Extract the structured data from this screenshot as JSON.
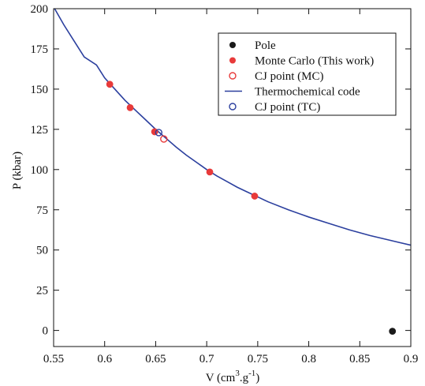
{
  "chart_data": {
    "type": "scatter",
    "xlabel": "V (cm",
    "xlabel_sup": "3",
    "xlabel_mid": ".g",
    "xlabel_sup2": "-1",
    "xlabel_end": ")",
    "ylabel": "P (kbar)",
    "xlim": [
      0.55,
      0.9
    ],
    "ylim": [
      -10,
      200
    ],
    "xticks": [
      0.55,
      0.6,
      0.65,
      0.7,
      0.75,
      0.8,
      0.85,
      0.9
    ],
    "xtick_labels": [
      "0.55",
      "0.6",
      "0.65",
      "0.7",
      "0.75",
      "0.8",
      "0.85",
      "0.9"
    ],
    "yticks": [
      0,
      25,
      50,
      75,
      100,
      125,
      150,
      175,
      200
    ],
    "ytick_labels": [
      "0",
      "25",
      "50",
      "75",
      "100",
      "125",
      "150",
      "175",
      "200"
    ],
    "grid": false,
    "legend_position": "top-right",
    "colors": {
      "pole": "#1a1a1a",
      "mc": "#e83a3a",
      "tc": "#2b3f9e"
    },
    "series": [
      {
        "name": "Pole",
        "kind": "point",
        "marker": "filled",
        "color": "#1a1a1a",
        "points": [
          [
            0.882,
            -0.5
          ]
        ]
      },
      {
        "name": "Monte Carlo (This work)",
        "kind": "point",
        "marker": "filled",
        "color": "#e83a3a",
        "points": [
          [
            0.605,
            153
          ],
          [
            0.625,
            138.5
          ],
          [
            0.649,
            123.5
          ],
          [
            0.703,
            98.5
          ],
          [
            0.747,
            83.5
          ]
        ]
      },
      {
        "name": "CJ point (MC)",
        "kind": "point",
        "marker": "open",
        "color": "#e83a3a",
        "points": [
          [
            0.658,
            119
          ]
        ]
      },
      {
        "name": "Thermochemical code",
        "kind": "line",
        "color": "#2b3f9e",
        "points": [
          [
            0.551,
            200
          ],
          [
            0.56,
            190
          ],
          [
            0.57,
            180
          ],
          [
            0.58,
            170
          ],
          [
            0.592,
            165
          ],
          [
            0.6,
            157
          ],
          [
            0.61,
            150
          ],
          [
            0.62,
            143
          ],
          [
            0.63,
            137
          ],
          [
            0.64,
            131
          ],
          [
            0.65,
            125
          ],
          [
            0.66,
            119.5
          ],
          [
            0.67,
            114
          ],
          [
            0.68,
            109
          ],
          [
            0.69,
            104.5
          ],
          [
            0.7,
            100
          ],
          [
            0.71,
            96
          ],
          [
            0.72,
            92.5
          ],
          [
            0.73,
            89
          ],
          [
            0.74,
            86
          ],
          [
            0.75,
            83
          ],
          [
            0.76,
            80
          ],
          [
            0.78,
            75
          ],
          [
            0.8,
            70.5
          ],
          [
            0.82,
            66.5
          ],
          [
            0.84,
            62.5
          ],
          [
            0.86,
            59
          ],
          [
            0.88,
            56
          ],
          [
            0.9,
            53
          ]
        ]
      },
      {
        "name": "CJ point (TC)",
        "kind": "point",
        "marker": "open",
        "color": "#2b3f9e",
        "points": [
          [
            0.653,
            123
          ]
        ]
      }
    ]
  }
}
